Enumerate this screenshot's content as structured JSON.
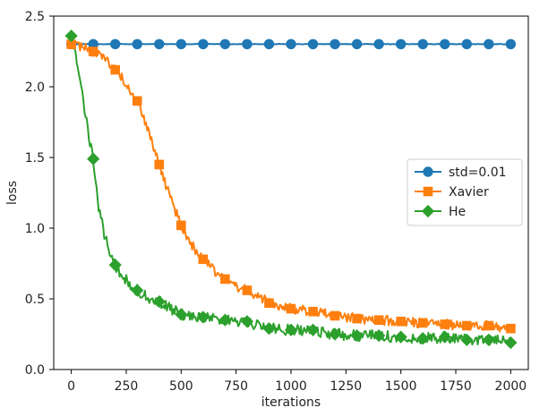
{
  "chart_data": {
    "type": "line",
    "title": "",
    "xlabel": "iterations",
    "ylabel": "loss",
    "xlim": [
      -80,
      2080
    ],
    "ylim": [
      0,
      2.5
    ],
    "xticks": [
      0,
      250,
      500,
      750,
      1000,
      1250,
      1500,
      1750,
      2000
    ],
    "yticks": [
      0.0,
      0.5,
      1.0,
      1.5,
      2.0,
      2.5
    ],
    "xtick_labels": [
      "0",
      "250",
      "500",
      "750",
      "1000",
      "1250",
      "1500",
      "1750",
      "2000"
    ],
    "ytick_labels": [
      "0.0",
      "0.5",
      "1.0",
      "1.5",
      "2.0",
      "2.5"
    ],
    "grid": false,
    "legend_position": "center-right",
    "series": [
      {
        "name": "std=0.01",
        "color": "#1f77b4",
        "marker": "circle",
        "noise": 0.002,
        "x": [
          0,
          100,
          200,
          300,
          400,
          500,
          600,
          700,
          800,
          900,
          1000,
          1100,
          1200,
          1300,
          1400,
          1500,
          1600,
          1700,
          1800,
          1900,
          2000
        ],
        "y": [
          2.302,
          2.302,
          2.302,
          2.302,
          2.302,
          2.302,
          2.302,
          2.302,
          2.302,
          2.302,
          2.302,
          2.302,
          2.302,
          2.302,
          2.302,
          2.302,
          2.302,
          2.302,
          2.302,
          2.302,
          2.302
        ]
      },
      {
        "name": "Xavier",
        "color": "#ff7f0e",
        "marker": "square",
        "noise": 0.035,
        "x": [
          0,
          50,
          100,
          150,
          200,
          250,
          300,
          350,
          400,
          450,
          500,
          550,
          600,
          650,
          700,
          750,
          800,
          850,
          900,
          950,
          1000,
          1100,
          1200,
          1300,
          1400,
          1500,
          1600,
          1700,
          1800,
          1900,
          2000
        ],
        "y": [
          2.3,
          2.28,
          2.25,
          2.2,
          2.12,
          2.02,
          1.9,
          1.7,
          1.45,
          1.22,
          1.02,
          0.88,
          0.78,
          0.7,
          0.64,
          0.59,
          0.56,
          0.52,
          0.47,
          0.45,
          0.43,
          0.41,
          0.38,
          0.36,
          0.35,
          0.34,
          0.33,
          0.32,
          0.31,
          0.31,
          0.29
        ]
      },
      {
        "name": "He",
        "color": "#2ca02c",
        "marker": "diamond",
        "noise": 0.04,
        "x": [
          0,
          25,
          50,
          75,
          100,
          125,
          150,
          175,
          200,
          250,
          300,
          350,
          400,
          450,
          500,
          600,
          700,
          800,
          900,
          1000,
          1100,
          1200,
          1300,
          1400,
          1500,
          1600,
          1700,
          1800,
          1900,
          2000
        ],
        "y": [
          2.36,
          2.2,
          1.95,
          1.7,
          1.49,
          1.15,
          0.95,
          0.83,
          0.74,
          0.63,
          0.56,
          0.51,
          0.48,
          0.43,
          0.39,
          0.37,
          0.35,
          0.34,
          0.29,
          0.28,
          0.28,
          0.25,
          0.24,
          0.24,
          0.23,
          0.22,
          0.23,
          0.21,
          0.21,
          0.19
        ]
      }
    ]
  }
}
